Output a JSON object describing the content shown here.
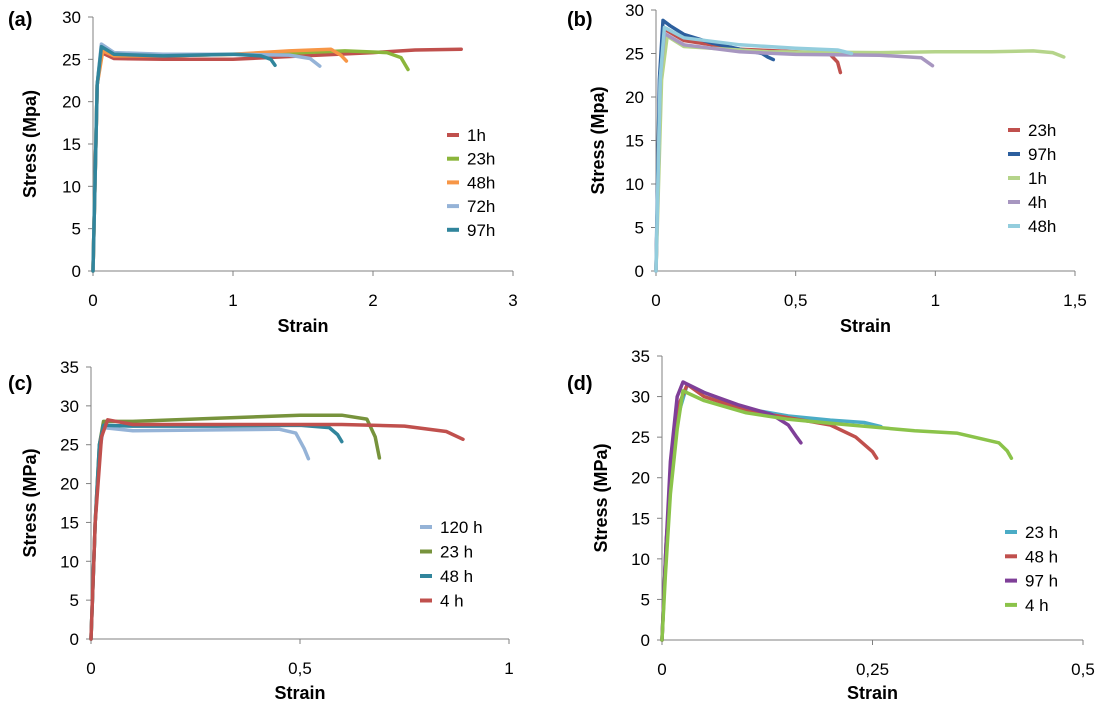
{
  "chart_data": [
    {
      "type": "line",
      "panel_label": "(a)",
      "xlabel": "Strain",
      "ylabel": "Stress (Mpa)",
      "xlim": [
        0,
        3
      ],
      "ylim": [
        0,
        30
      ],
      "xticks": [
        "0",
        "1",
        "2",
        "3"
      ],
      "xtick_values": [
        0,
        1,
        2,
        3
      ],
      "yticks": [
        "0",
        "5",
        "10",
        "15",
        "20",
        "25",
        "30"
      ],
      "ytick_values": [
        0,
        5,
        10,
        15,
        20,
        25,
        30
      ],
      "legend_position": "right",
      "series": [
        {
          "name": "1h",
          "color": "#c0504d",
          "points": [
            [
              0,
              0
            ],
            [
              0.03,
              22
            ],
            [
              0.06,
              25.8
            ],
            [
              0.15,
              25.1
            ],
            [
              0.5,
              25
            ],
            [
              1.0,
              25
            ],
            [
              1.5,
              25.4
            ],
            [
              2.0,
              25.8
            ],
            [
              2.3,
              26.1
            ],
            [
              2.63,
              26.2
            ]
          ]
        },
        {
          "name": "23h",
          "color": "#8bb53b",
          "points": [
            [
              0,
              0
            ],
            [
              0.03,
              22
            ],
            [
              0.06,
              26.2
            ],
            [
              0.15,
              25.6
            ],
            [
              0.5,
              25.4
            ],
            [
              1.0,
              25.6
            ],
            [
              1.5,
              25.8
            ],
            [
              1.8,
              26
            ],
            [
              2.1,
              25.8
            ],
            [
              2.2,
              25.2
            ],
            [
              2.25,
              23.8
            ]
          ]
        },
        {
          "name": "48h",
          "color": "#f79646",
          "points": [
            [
              0,
              0
            ],
            [
              0.03,
              22
            ],
            [
              0.07,
              26
            ],
            [
              0.15,
              25.4
            ],
            [
              0.5,
              25.4
            ],
            [
              1.0,
              25.6
            ],
            [
              1.4,
              26
            ],
            [
              1.7,
              26.2
            ],
            [
              1.77,
              25.5
            ],
            [
              1.81,
              24.8
            ]
          ]
        },
        {
          "name": "72h",
          "color": "#95b3d7",
          "points": [
            [
              0,
              0
            ],
            [
              0.03,
              22
            ],
            [
              0.06,
              26.8
            ],
            [
              0.15,
              25.8
            ],
            [
              0.5,
              25.6
            ],
            [
              1.0,
              25.6
            ],
            [
              1.4,
              25.5
            ],
            [
              1.55,
              25.1
            ],
            [
              1.62,
              24.2
            ]
          ]
        },
        {
          "name": "97h",
          "color": "#31859c",
          "points": [
            [
              0,
              0
            ],
            [
              0.03,
              22
            ],
            [
              0.06,
              26.5
            ],
            [
              0.15,
              25.6
            ],
            [
              0.5,
              25.4
            ],
            [
              1.0,
              25.6
            ],
            [
              1.2,
              25.4
            ],
            [
              1.27,
              25
            ],
            [
              1.3,
              24.3
            ]
          ]
        }
      ]
    },
    {
      "type": "line",
      "panel_label": "(b)",
      "xlabel": "Strain",
      "ylabel": "Stress (Mpa)",
      "xlim": [
        0,
        1.5
      ],
      "ylim": [
        0,
        30
      ],
      "xticks": [
        "0",
        "0,5",
        "1",
        "1,5"
      ],
      "xtick_values": [
        0,
        0.5,
        1,
        1.5
      ],
      "yticks": [
        "0",
        "5",
        "10",
        "15",
        "20",
        "25",
        "30"
      ],
      "ytick_values": [
        0,
        5,
        10,
        15,
        20,
        25,
        30
      ],
      "legend_position": "right",
      "series": [
        {
          "name": "23h",
          "color": "#c0504d",
          "points": [
            [
              0,
              0
            ],
            [
              0.015,
              22
            ],
            [
              0.03,
              27.8
            ],
            [
              0.1,
              26.5
            ],
            [
              0.3,
              25.5
            ],
            [
              0.5,
              25.2
            ],
            [
              0.62,
              25
            ],
            [
              0.65,
              24
            ],
            [
              0.66,
              22.8
            ]
          ]
        },
        {
          "name": "97h",
          "color": "#2c5f9e",
          "points": [
            [
              0,
              0
            ],
            [
              0.012,
              22
            ],
            [
              0.025,
              28.8
            ],
            [
              0.05,
              28.2
            ],
            [
              0.1,
              27.2
            ],
            [
              0.2,
              26.2
            ],
            [
              0.3,
              25.5
            ],
            [
              0.38,
              25
            ],
            [
              0.4,
              24.6
            ],
            [
              0.42,
              24.3
            ]
          ]
        },
        {
          "name": "1h",
          "color": "#b5d48a",
          "points": [
            [
              0,
              0
            ],
            [
              0.02,
              22
            ],
            [
              0.04,
              27
            ],
            [
              0.1,
              25.8
            ],
            [
              0.4,
              25.2
            ],
            [
              0.8,
              25.1
            ],
            [
              1.0,
              25.2
            ],
            [
              1.2,
              25.2
            ],
            [
              1.35,
              25.3
            ],
            [
              1.42,
              25.1
            ],
            [
              1.46,
              24.6
            ]
          ]
        },
        {
          "name": "4h",
          "color": "#a796c0",
          "points": [
            [
              0,
              0
            ],
            [
              0.015,
              22
            ],
            [
              0.03,
              27.3
            ],
            [
              0.1,
              26
            ],
            [
              0.3,
              25.2
            ],
            [
              0.5,
              24.9
            ],
            [
              0.8,
              24.8
            ],
            [
              0.95,
              24.5
            ],
            [
              0.99,
              23.6
            ]
          ]
        },
        {
          "name": "48h",
          "color": "#93cddd",
          "points": [
            [
              0,
              0
            ],
            [
              0.015,
              22
            ],
            [
              0.03,
              28
            ],
            [
              0.1,
              26.8
            ],
            [
              0.3,
              26
            ],
            [
              0.5,
              25.6
            ],
            [
              0.65,
              25.4
            ],
            [
              0.7,
              25
            ]
          ]
        }
      ]
    },
    {
      "type": "line",
      "panel_label": "(c)",
      "xlabel": "Strain",
      "ylabel": "Stress (MPa)",
      "xlim": [
        0,
        1
      ],
      "ylim": [
        0,
        35
      ],
      "xticks": [
        "0",
        "0,5",
        "1"
      ],
      "xtick_values": [
        0,
        0.5,
        1
      ],
      "yticks": [
        "0",
        "5",
        "10",
        "15",
        "20",
        "25",
        "30",
        "35"
      ],
      "ytick_values": [
        0,
        5,
        10,
        15,
        20,
        25,
        30,
        35
      ],
      "legend_position": "right",
      "series": [
        {
          "name": "120 h",
          "color": "#95b3d7",
          "points": [
            [
              0,
              0
            ],
            [
              0.01,
              15
            ],
            [
              0.02,
              24
            ],
            [
              0.03,
              27.2
            ],
            [
              0.1,
              26.8
            ],
            [
              0.3,
              26.9
            ],
            [
              0.45,
              27
            ],
            [
              0.49,
              26.5
            ],
            [
              0.51,
              24.5
            ],
            [
              0.52,
              23.2
            ]
          ]
        },
        {
          "name": "23 h",
          "color": "#77933c",
          "points": [
            [
              0,
              0
            ],
            [
              0.01,
              15
            ],
            [
              0.02,
              25
            ],
            [
              0.03,
              28
            ],
            [
              0.1,
              28
            ],
            [
              0.3,
              28.4
            ],
            [
              0.5,
              28.8
            ],
            [
              0.6,
              28.8
            ],
            [
              0.66,
              28.3
            ],
            [
              0.68,
              26
            ],
            [
              0.69,
              23.3
            ]
          ]
        },
        {
          "name": "48 h",
          "color": "#31859c",
          "points": [
            [
              0,
              0
            ],
            [
              0.01,
              15
            ],
            [
              0.02,
              25
            ],
            [
              0.03,
              27.5
            ],
            [
              0.1,
              27.4
            ],
            [
              0.3,
              27.4
            ],
            [
              0.5,
              27.5
            ],
            [
              0.57,
              27.2
            ],
            [
              0.59,
              26.3
            ],
            [
              0.6,
              25.4
            ]
          ]
        },
        {
          "name": "4 h",
          "color": "#c0504d",
          "points": [
            [
              0,
              0
            ],
            [
              0.01,
              15
            ],
            [
              0.025,
              26
            ],
            [
              0.04,
              28.2
            ],
            [
              0.1,
              27.6
            ],
            [
              0.3,
              27.6
            ],
            [
              0.6,
              27.6
            ],
            [
              0.75,
              27.4
            ],
            [
              0.85,
              26.7
            ],
            [
              0.89,
              25.7
            ]
          ]
        }
      ]
    },
    {
      "type": "line",
      "panel_label": "(d)",
      "xlabel": "Strain",
      "ylabel": "Stress (MPa)",
      "xlim": [
        0,
        0.5
      ],
      "ylim": [
        0,
        35
      ],
      "xticks": [
        "0",
        "0,25",
        "0,5"
      ],
      "xtick_values": [
        0,
        0.25,
        0.5
      ],
      "yticks": [
        "0",
        "5",
        "10",
        "15",
        "20",
        "25",
        "30",
        "35"
      ],
      "ytick_values": [
        0,
        5,
        10,
        15,
        20,
        25,
        30,
        35
      ],
      "legend_position": "right",
      "series": [
        {
          "name": "23 h",
          "color": "#4bacc6",
          "points": [
            [
              0,
              0
            ],
            [
              0.005,
              12
            ],
            [
              0.012,
              22
            ],
            [
              0.02,
              28
            ],
            [
              0.03,
              31.5
            ],
            [
              0.05,
              30.5
            ],
            [
              0.1,
              28.5
            ],
            [
              0.15,
              27.6
            ],
            [
              0.2,
              27.1
            ],
            [
              0.24,
              26.8
            ],
            [
              0.26,
              26.3
            ]
          ]
        },
        {
          "name": "48 h",
          "color": "#c0504d",
          "points": [
            [
              0,
              0
            ],
            [
              0.005,
              12
            ],
            [
              0.012,
              22
            ],
            [
              0.02,
              29
            ],
            [
              0.03,
              31.5
            ],
            [
              0.05,
              30
            ],
            [
              0.1,
              28.3
            ],
            [
              0.15,
              27.4
            ],
            [
              0.2,
              26.5
            ],
            [
              0.23,
              25
            ],
            [
              0.25,
              23.2
            ],
            [
              0.255,
              22.4
            ]
          ]
        },
        {
          "name": "97 h",
          "color": "#7f3f98",
          "points": [
            [
              0,
              0
            ],
            [
              0.004,
              10
            ],
            [
              0.01,
              22
            ],
            [
              0.018,
              30
            ],
            [
              0.025,
              31.8
            ],
            [
              0.05,
              30.5
            ],
            [
              0.09,
              29
            ],
            [
              0.13,
              27.8
            ],
            [
              0.15,
              26.5
            ],
            [
              0.16,
              25
            ],
            [
              0.165,
              24.3
            ]
          ]
        },
        {
          "name": "4 h",
          "color": "#8bc34a",
          "points": [
            [
              0,
              0
            ],
            [
              0.004,
              8
            ],
            [
              0.01,
              18
            ],
            [
              0.018,
              26
            ],
            [
              0.025,
              30.7
            ],
            [
              0.05,
              29.5
            ],
            [
              0.1,
              28
            ],
            [
              0.15,
              27.2
            ],
            [
              0.2,
              26.7
            ],
            [
              0.3,
              25.8
            ],
            [
              0.35,
              25.5
            ],
            [
              0.4,
              24.3
            ],
            [
              0.41,
              23.3
            ],
            [
              0.415,
              22.4
            ]
          ]
        }
      ]
    }
  ]
}
